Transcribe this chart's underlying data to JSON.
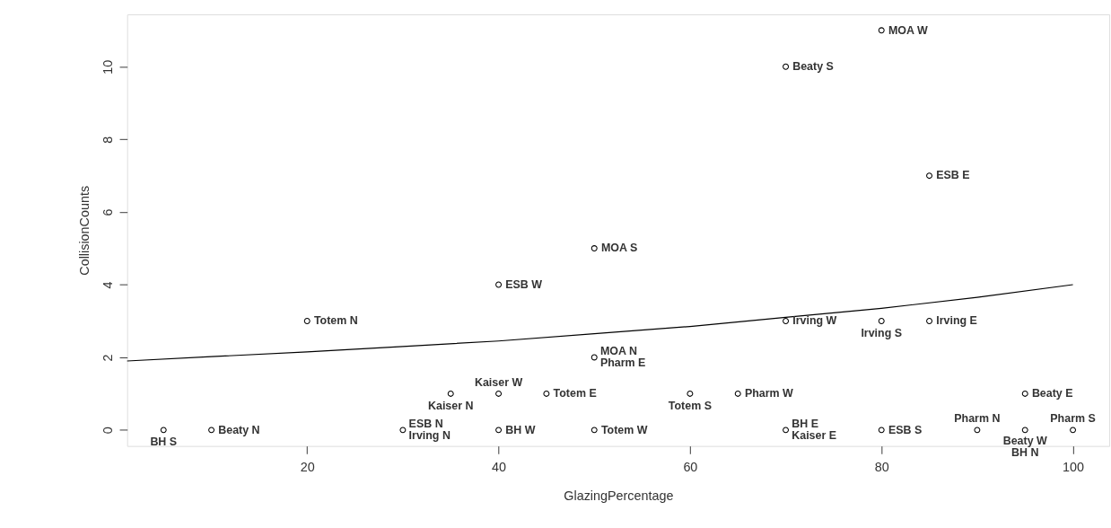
{
  "chart_data": {
    "type": "scatter",
    "xlabel": "GlazingPercentage",
    "ylabel": "CollisionCounts",
    "xlim": [
      1.2,
      103.8
    ],
    "ylim": [
      -0.44,
      11.44
    ],
    "xticks": [
      20,
      40,
      60,
      80,
      100
    ],
    "yticks": [
      0,
      2,
      4,
      6,
      8,
      10
    ],
    "marker": "circle",
    "series": [
      {
        "color": "#000000",
        "x": [
          5,
          10,
          20,
          30,
          35,
          40,
          40,
          40,
          45,
          50,
          50,
          50,
          60,
          65,
          70,
          70,
          70,
          80,
          80,
          80,
          85,
          85,
          90,
          95,
          95,
          100
        ],
        "values": [
          0,
          0,
          3,
          0,
          1,
          4,
          1,
          0,
          1,
          5,
          2,
          0,
          1,
          1,
          10,
          3,
          0,
          11,
          3,
          0,
          7,
          3,
          0,
          1,
          0,
          0
        ]
      },
      {
        "type": "line",
        "color": "#000000",
        "marker": "none",
        "line_style": "solid",
        "x": [
          1.2,
          10,
          20,
          30,
          40,
          50,
          60,
          70,
          80,
          90,
          100
        ],
        "values": [
          1.9,
          2.02,
          2.15,
          2.3,
          2.45,
          2.65,
          2.85,
          3.1,
          3.35,
          3.65,
          4.0
        ]
      }
    ],
    "annotations": [
      {
        "text": "MOA W",
        "x": 80,
        "y": 11
      },
      {
        "text": "Beaty S",
        "x": 70,
        "y": 10
      },
      {
        "text": "ESB E",
        "x": 85,
        "y": 7
      },
      {
        "text": "MOA S",
        "x": 50,
        "y": 5
      },
      {
        "text": "ESB W",
        "x": 40,
        "y": 4
      },
      {
        "text": "Totem N",
        "x": 20,
        "y": 3
      },
      {
        "text": "Irving W",
        "x": 70,
        "y": 3
      },
      {
        "text": "Irving S",
        "x": 80,
        "y": 3
      },
      {
        "text": "Irving E",
        "x": 85,
        "y": 3
      },
      {
        "text": "MOA N",
        "x": 50,
        "y": 2
      },
      {
        "text": "Pharm E",
        "x": 50,
        "y": 2
      },
      {
        "text": "Kaiser N",
        "x": 35,
        "y": 1
      },
      {
        "text": "Kaiser W",
        "x": 40,
        "y": 1
      },
      {
        "text": "Totem E",
        "x": 45,
        "y": 1
      },
      {
        "text": "Totem S",
        "x": 60,
        "y": 1
      },
      {
        "text": "Pharm W",
        "x": 65,
        "y": 1
      },
      {
        "text": "Beaty E",
        "x": 95,
        "y": 1
      },
      {
        "text": "BH S",
        "x": 5,
        "y": 0
      },
      {
        "text": "Beaty N",
        "x": 10,
        "y": 0
      },
      {
        "text": "ESB N",
        "x": 30,
        "y": 0
      },
      {
        "text": "Irving N",
        "x": 30,
        "y": 0
      },
      {
        "text": "BH W",
        "x": 40,
        "y": 0
      },
      {
        "text": "Totem W",
        "x": 50,
        "y": 0
      },
      {
        "text": "BH E",
        "x": 70,
        "y": 0
      },
      {
        "text": "Kaiser E",
        "x": 70,
        "y": 0
      },
      {
        "text": "ESB S",
        "x": 80,
        "y": 0
      },
      {
        "text": "Pharm N",
        "x": 90,
        "y": 0
      },
      {
        "text": "Beaty W",
        "x": 95,
        "y": 0
      },
      {
        "text": "BH N",
        "x": 95,
        "y": 0
      },
      {
        "text": "Pharm S",
        "x": 100,
        "y": 0
      }
    ]
  }
}
